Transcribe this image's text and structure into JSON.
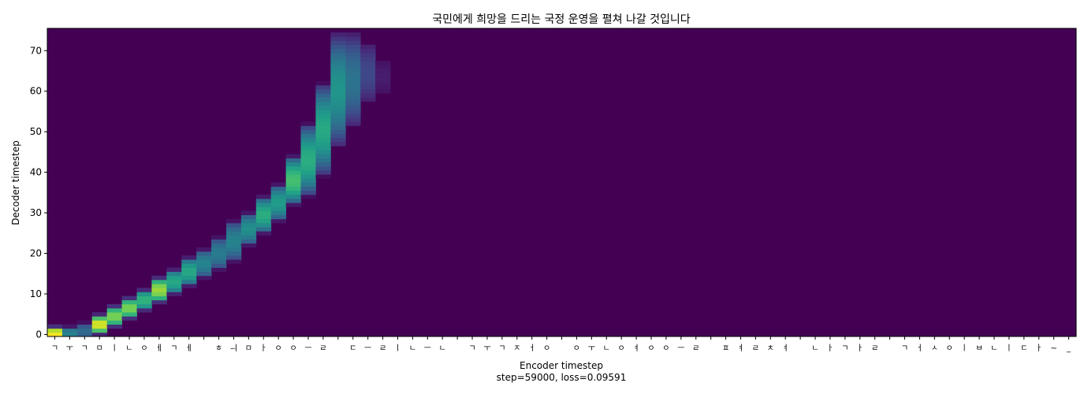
{
  "chart_data": {
    "type": "heatmap",
    "title": "국민에게 희망을 드리는 국정 운영을 펼쳐 나갈 것입니다",
    "xlabel": "Encoder timestep",
    "xlabel_sub": "step=59000, loss=0.09591",
    "ylabel": "Decoder timestep",
    "colormap": "viridis",
    "value_range": [
      0,
      1
    ],
    "background_color": "#440154",
    "encoder_length": 69,
    "decoder_length": 76,
    "xlim": [
      0,
      69
    ],
    "ylim": [
      0,
      76
    ],
    "yticks": [
      0,
      10,
      20,
      30,
      40,
      50,
      60,
      70
    ],
    "xtick_labels": [
      "ㄱ",
      "ㅜ",
      "ㄱ",
      "ㅁ",
      "ㅣ",
      "ㄴ",
      "ㅇ",
      "ㅔ",
      "ㄱ",
      "ㅔ",
      " ",
      "ㅎ",
      "ㅢ",
      "ㅁ",
      "ㅏ",
      "ㅇ",
      "ㅇ",
      "ㅡ",
      "ㄹ",
      " ",
      "ㄷ",
      "ㅡ",
      "ㄹ",
      "ㅣ",
      "ㄴ",
      "ㅡ",
      "ㄴ",
      " ",
      "ㄱ",
      "ㅜ",
      "ㄱ",
      "ㅈ",
      "ㅓ",
      "ㅇ",
      " ",
      "ㅇ",
      "ㅜ",
      "ㄴ",
      "ㅇ",
      "ㅕ",
      "ㅇ",
      "ㅇ",
      "ㅡ",
      "ㄹ",
      " ",
      "ㅍ",
      "ㅕ",
      "ㄹ",
      "ㅊ",
      "ㅕ",
      " ",
      "ㄴ",
      "ㅏ",
      "ㄱ",
      "ㅏ",
      "ㄹ",
      " ",
      "ㄱ",
      "ㅓ",
      "ㅅ",
      "ㅇ",
      "ㅣ",
      "ㅂ",
      "ㄴ",
      "ㅣ",
      "ㄷ",
      "ㅏ",
      "~",
      "_"
    ],
    "alignment_path": [
      {
        "x": 0.5,
        "y_start": 0,
        "y_end": 1.5,
        "value": 1.0
      },
      {
        "x": 1.5,
        "y_start": 0,
        "y_end": 1.5,
        "value": 0.45
      },
      {
        "x": 2.5,
        "y_start": 0,
        "y_end": 2.5,
        "value": 0.35
      },
      {
        "x": 3.5,
        "y_start": 1.5,
        "y_end": 4.5,
        "value": 0.95
      },
      {
        "x": 4.5,
        "y_start": 3,
        "y_end": 7,
        "value": 0.8
      },
      {
        "x": 5.5,
        "y_start": 5,
        "y_end": 9,
        "value": 0.8
      },
      {
        "x": 6.5,
        "y_start": 7,
        "y_end": 11,
        "value": 0.65
      },
      {
        "x": 7.5,
        "y_start": 9,
        "y_end": 14,
        "value": 0.85
      },
      {
        "x": 8.5,
        "y_start": 11,
        "y_end": 16,
        "value": 0.6
      },
      {
        "x": 9.5,
        "y_start": 13,
        "y_end": 19,
        "value": 0.6
      },
      {
        "x": 10.5,
        "y_start": 15,
        "y_end": 21,
        "value": 0.45
      },
      {
        "x": 11.5,
        "y_start": 17,
        "y_end": 24,
        "value": 0.42
      },
      {
        "x": 12.5,
        "y_start": 19,
        "y_end": 28,
        "value": 0.45
      },
      {
        "x": 13.5,
        "y_start": 23,
        "y_end": 30,
        "value": 0.5
      },
      {
        "x": 14.5,
        "y_start": 26,
        "y_end": 34,
        "value": 0.62
      },
      {
        "x": 15.5,
        "y_start": 29,
        "y_end": 37,
        "value": 0.55
      },
      {
        "x": 16.5,
        "y_start": 33,
        "y_end": 44,
        "value": 0.7
      },
      {
        "x": 17.5,
        "y_start": 35,
        "y_end": 52,
        "value": 0.62
      },
      {
        "x": 18.5,
        "y_start": 40,
        "y_end": 62,
        "value": 0.6
      },
      {
        "x": 19.5,
        "y_start": 47,
        "y_end": 74.5,
        "value": 0.52
      },
      {
        "x": 20.5,
        "y_start": 52,
        "y_end": 74.5,
        "value": 0.38
      },
      {
        "x": 21.5,
        "y_start": 58,
        "y_end": 72,
        "value": 0.22
      },
      {
        "x": 22.5,
        "y_start": 60,
        "y_end": 68,
        "value": 0.08
      }
    ]
  }
}
